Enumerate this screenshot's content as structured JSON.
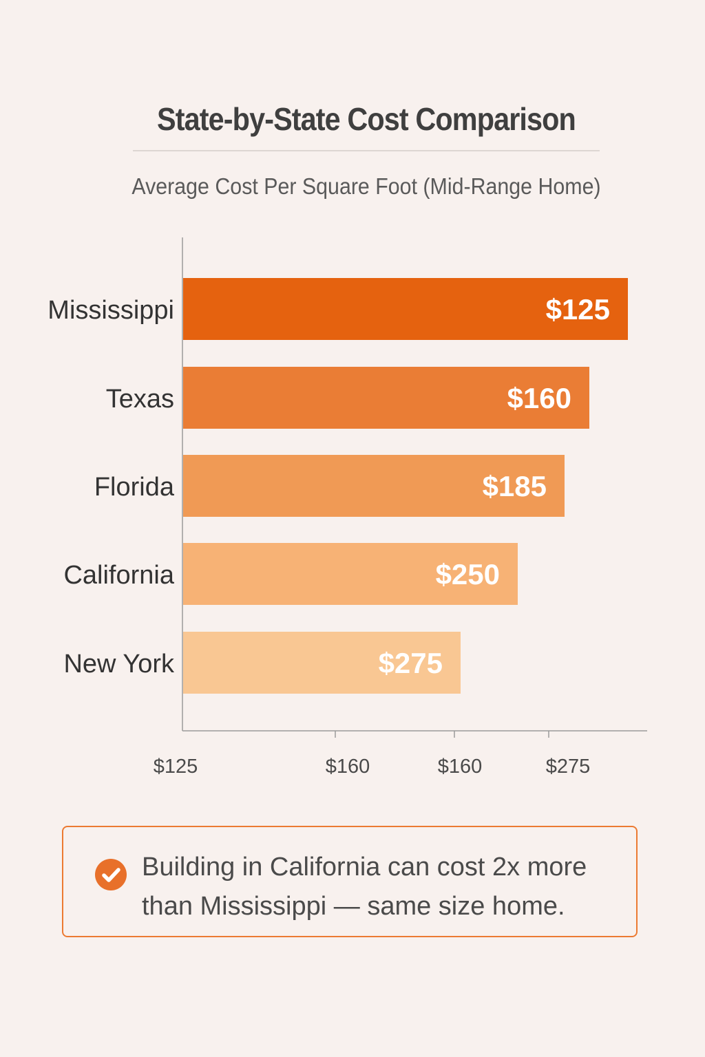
{
  "chart_data": {
    "type": "bar",
    "orientation": "horizontal",
    "title": "State-by-State Cost Comparison",
    "subtitle": "Average Cost Per Square Foot (Mid-Range Home)",
    "categories": [
      "Mississippi",
      "Texas",
      "Florida",
      "California",
      "New York"
    ],
    "values": [
      125,
      160,
      185,
      250,
      275
    ],
    "data_labels": [
      "$125",
      "$160",
      "$185",
      "$250",
      "$275"
    ],
    "colors": [
      "#E5620F",
      "#EA7D35",
      "#F09A55",
      "#F7B275",
      "#F9C793"
    ],
    "x_tick_labels": [
      "$125",
      "$160",
      "$160",
      "$275"
    ],
    "grid": false,
    "legend": "none"
  },
  "callout": {
    "icon": "check-circle-icon",
    "accent": "#E8702A",
    "line1": "Building in California can cost 2x more",
    "line2": "than Mississippi — same size home."
  }
}
